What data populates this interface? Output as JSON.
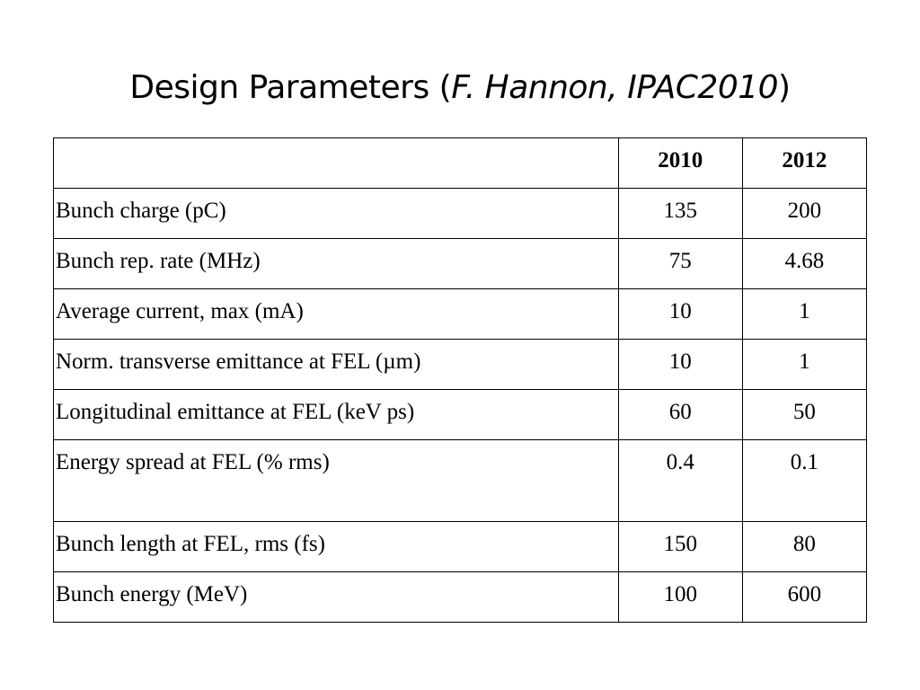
{
  "title": {
    "main": "Design Parameters (",
    "citation": "F. Hannon, IPAC2010",
    "close": ")"
  },
  "table": {
    "header": {
      "label": "",
      "col_a": "2010",
      "col_b": "2012"
    },
    "rows": [
      {
        "label": "Bunch charge (pC)",
        "a": "135",
        "b": "200"
      },
      {
        "label": "Bunch rep. rate (MHz)",
        "a": "75",
        "b": "4.68"
      },
      {
        "label": "Average current, max (mA)",
        "a": "10",
        "b": "1"
      },
      {
        "label": "Norm. transverse emittance at FEL (µm)",
        "a": "10",
        "b": "1"
      },
      {
        "label": "Longitudinal emittance at FEL (keV ps)",
        "a": "60",
        "b": "50"
      },
      {
        "label": "Energy spread at FEL (% rms)",
        "a": "0.4",
        "b": "0.1"
      },
      {
        "label": "Bunch length at FEL, rms (fs)",
        "a": "150",
        "b": "80"
      },
      {
        "label": "Bunch energy (MeV)",
        "a": "100",
        "b": "600"
      }
    ]
  }
}
